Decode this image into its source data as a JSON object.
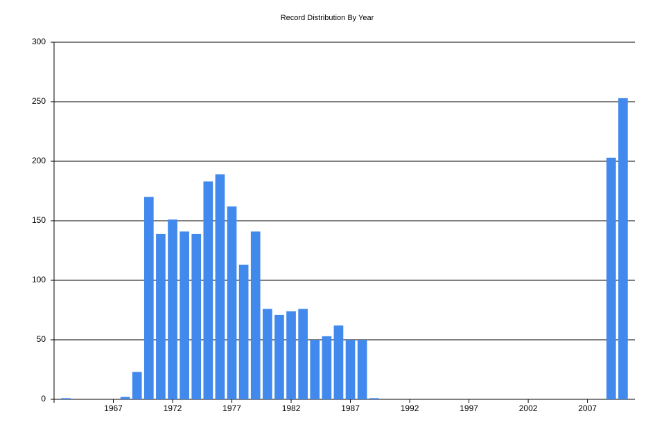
{
  "chart_data": {
    "type": "bar",
    "title": "Record Distribution By Year",
    "x": [
      1963,
      1968,
      1969,
      1970,
      1971,
      1972,
      1973,
      1974,
      1975,
      1976,
      1977,
      1978,
      1979,
      1980,
      1981,
      1982,
      1983,
      1984,
      1985,
      1986,
      1987,
      1988,
      1989,
      2009,
      2010
    ],
    "values": [
      1,
      2,
      23,
      170,
      139,
      151,
      141,
      139,
      183,
      189,
      162,
      113,
      141,
      76,
      71,
      74,
      76,
      50,
      53,
      62,
      50,
      50,
      1,
      203,
      253
    ],
    "color": "#4189ec",
    "xlim": [
      1962,
      2011
    ],
    "xticks": [
      1967,
      1972,
      1977,
      1982,
      1987,
      1992,
      1997,
      2002,
      2007
    ],
    "ylim": [
      0,
      300
    ],
    "yticks": [
      0,
      50,
      100,
      150,
      200,
      250,
      300
    ],
    "grid": true
  }
}
